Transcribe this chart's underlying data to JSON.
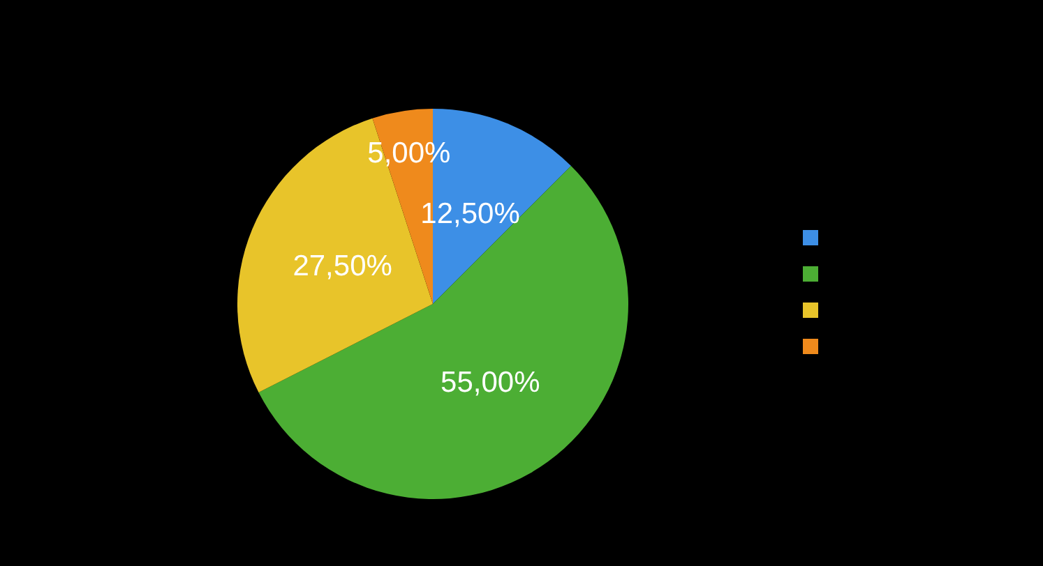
{
  "chart_data": {
    "type": "pie",
    "categories": [
      null,
      null,
      null,
      null
    ],
    "values": [
      12.5,
      55,
      27.5,
      5
    ],
    "colors": [
      "#3d8fe6",
      "#4cae34",
      "#e8c42a",
      "#ef8a1c"
    ],
    "value_labels": [
      "12,50%",
      "55,00%",
      "27,50%",
      "5,00%"
    ]
  }
}
